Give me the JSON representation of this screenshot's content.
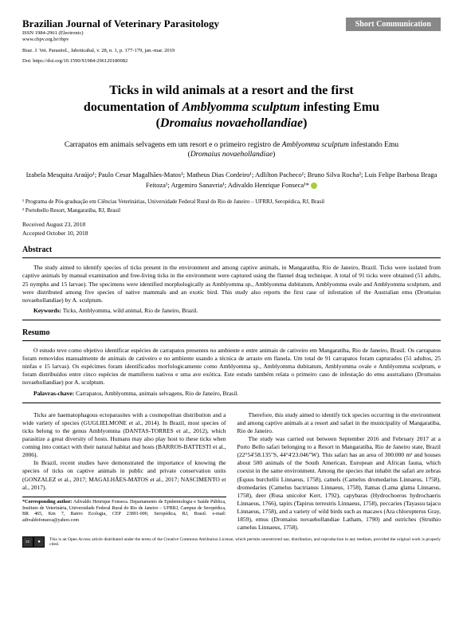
{
  "header": {
    "journal": "Brazilian Journal of Veterinary Parasitology",
    "short_comm": "Short Communication",
    "issn1": "ISSN 1984-2961 (Electronic)",
    "issn2": "www.cbpv.org.br/rbpv",
    "cite1": "Braz. J. Vet. Parasitol., Jaboticabal, v. 28, n. 1, p. 177-179, jan.-mar. 2019",
    "cite2": "Doi: https://doi.org/10.1590/S1984-296120180082"
  },
  "title": {
    "line1": "Ticks in wild animals at a resort and the first",
    "line2a": "documentation of ",
    "line2b": "Amblyomma sculptum",
    "line2c": " infesting Emu",
    "line3a": "(",
    "line3b": "Dromaius novaehollandiae",
    "line3c": ")"
  },
  "subtitle": {
    "t1": "Carrapatos em animais selvagens em um resort e o primeiro registro de ",
    "t2": "Amblyomma sculptum",
    "t3": " infestando Emu",
    "t4": "(",
    "t5": "Dromaius novaehollandiae",
    "t6": ")"
  },
  "authors": "Izabela Mesquita Araújo¹; Paulo Cesar Magalhães-Matos¹; Matheus Dias Cordeiro¹; Adlilton Pacheco¹; Bruno Silva Rocha²; Luis Felipe Barbosa Braga Feitoza¹; Argemiro Sanavria¹; Adivaldo Henrique Fonseca¹* ",
  "affil1": "¹ Programa de Pós-graduação em Ciências Veterinárias, Universidade Federal Rural do Rio de Janeiro – UFRRJ, Seropédica, RJ, Brasil",
  "affil2": "² Portobello Resort, Mangaratiba, RJ, Brasil",
  "dates": {
    "rec": "Received August 23, 2018",
    "acc": "Accepted October 10, 2018"
  },
  "abstract_head": "Abstract",
  "abstract": "The study aimed to identify species of ticks present in the environment and among captive animals, in Mangaratiba, Rio de Janeiro, Brazil. Ticks were isolated from captive animals by manual examination and free-living ticks in the environment were captured using the flannel drag technique. A total of 91 ticks were obtained (51 adults, 25 nymphs and 15 larvae). The specimens were identified morphologically as Amblyomma sp., Amblyomma dubitatum, Amblyomma ovale and Amblyomma sculptum, and were distributed among five species of native mammals and an exotic bird. This study also reports the first case of infestation of the Australian emu (Dromaius novaehollandiae) by A. sculptum.",
  "abs_kw_label": "Keywords:",
  "abs_kw": " Ticks, Amblyomma, wild animal, Rio de Janeiro, Brazil.",
  "resumo_head": "Resumo",
  "resumo": "O estudo teve como objetivo identificar espécies de carrapatos presentes no ambiente e entre animais de cativeiro em Mangaratiba, Rio de Janeiro, Brasil. Os carrapatos foram removidos manualmente de animais de cativeiro e no ambiente usando a técnica de arrasto em flanela. Um total de 91 carrapatos foram capturados (51 adultos, 25 ninfas e 15 larvas). Os espécimes foram identificados morfologicamente como Amblyomma sp., Amblyomma dubitatum, Amblyomma ovale e Amblyomma sculptum, e foram distribuídos entre cinco espécies de mamíferos nativos e uma ave exótica. Este estudo também relata o primeiro caso de infestação do emu australiano (Dromaius novaehollandiae) por A. sculptum.",
  "res_kw_label": "Palavras-chave:",
  "res_kw": " Carrapatos, Amblyomma, animais selvagens, Rio de Janeiro, Brasil.",
  "col1": {
    "p1": "Ticks are haematophagous ectoparasites with a cosmopolitan distribution and a wide variety of species (GUGLIELMONE et al., 2014). In Brazil, most species of ticks belong to the genus Amblyomma (DANTAS-TORRES et al., 2012), which parasitize a great diversity of hosts. Humans may also play host to these ticks when coming into contact with their natural habitat and hosts (BARROS-BATTESTI et al., 2006).",
    "p2": "In Brazil, recent studies have demonstrated the importance of knowing the species of ticks on captive animals in public and private conservation units (GONZALEZ et al., 2017; MAGALHÃES-MATOS et al., 2017; NASCIMENTO et al., 2017)."
  },
  "col2": {
    "p1": "Therefore, this study aimed to identify tick species occurring in the environment and among captive animals at a resort and safari in the municipality of Mangaratiba, Rio de Janeiro.",
    "p2": "The study was carried out between September 2016 and February 2017 at a Porto Bello safari belonging to a Resort in Mangaratiba, Rio de Janeiro state, Brazil (22°54'58.135\"S, 44°4'23.046\"W). This safari has an area of 300.000 m² and houses about 500 animals of the South American, European and African fauna, which coexist in the same environment. Among the species that inhabit the safari are zebras (Equus burchellii Linnaeus, 1758), camels (Camelus dromedarius Linnaeus, 1758), dromedaries (Camelus bactrianus Linnaeus, 1758), llamas (Lama glama Linnaeus, 1758), deer (Rusa unicolor Kerr, 1792), capybaras (Hydrochoerus hydrochaeris Linnaeus, 1766), tapirs (Tapirus terrestris Linnaeus, 1758), peccaries (Tayassu tajacu Linnaeus, 1758), and a variety of wild birds such as macaws (Ara chloropterus Gray, 1859), emus (Dromaius novaehollandiae Latham, 1790) and ostriches (Struthio camelus Linnaeus, 1758)."
  },
  "corr_label": "*Corresponding author:",
  "corr": " Adivaldo Henrique Fonseca. Departamento de Epidemiologia e Saúde Pública, Instituto de Veterinária, Universidade Federal Rural do Rio de Janeiro – UFRRJ, Campus de Seropédica, BR 465, Km 7, Bairro Ecologia, CEP 23891-000, Seropédica, RJ, Brasil. e-mail: adivaldofonseca@yahoo.com",
  "cc": "This is an Open Access article distributed under the terms of the Creative Commons Attribution License, which permits unrestricted use, distribution, and reproduction in any medium, provided the original work is properly cited."
}
